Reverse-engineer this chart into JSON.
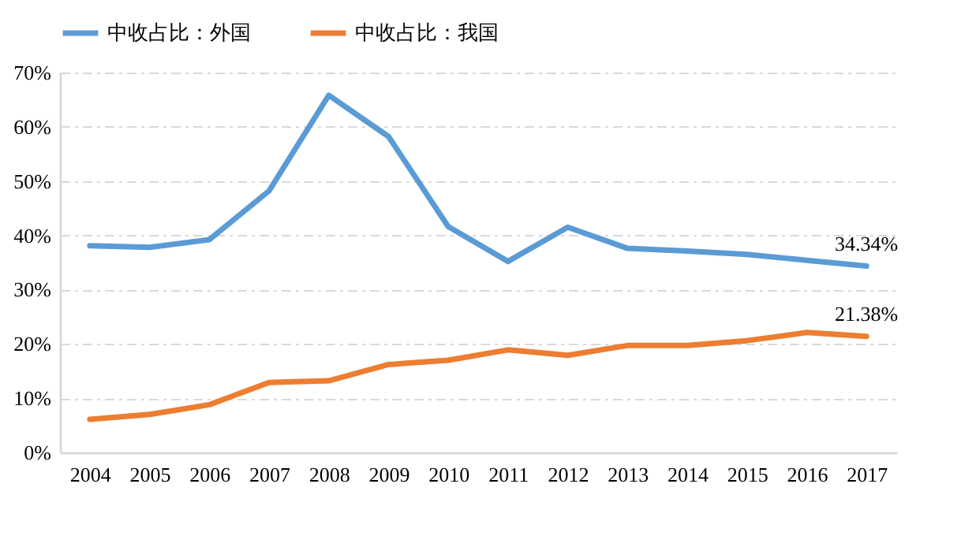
{
  "chart_data": {
    "type": "line",
    "categories": [
      "2004",
      "2005",
      "2006",
      "2007",
      "2008",
      "2009",
      "2010",
      "2011",
      "2012",
      "2013",
      "2014",
      "2015",
      "2016",
      "2017"
    ],
    "series": [
      {
        "name": "中收占比：外国",
        "color": "#5b9bd5",
        "values": [
          38.1,
          37.8,
          39.2,
          48.2,
          65.8,
          58.2,
          41.6,
          35.2,
          41.5,
          37.6,
          37.1,
          36.5,
          35.4,
          34.34
        ],
        "value_labels": [
          null,
          null,
          null,
          null,
          null,
          null,
          null,
          null,
          null,
          null,
          null,
          null,
          null,
          "34.34%"
        ]
      },
      {
        "name": "中收占比：我国",
        "color": "#ed7d31",
        "values": [
          6.1,
          7.0,
          8.8,
          12.9,
          13.2,
          16.2,
          17.0,
          18.9,
          17.9,
          19.7,
          19.7,
          20.6,
          22.1,
          21.38
        ],
        "value_labels": [
          null,
          null,
          null,
          null,
          null,
          null,
          null,
          null,
          null,
          null,
          null,
          null,
          null,
          "21.38%"
        ]
      }
    ],
    "ylim": [
      0,
      70
    ],
    "yticks": [
      {
        "value": 0,
        "label": "0%"
      },
      {
        "value": 10,
        "label": "10%"
      },
      {
        "value": 20,
        "label": "20%"
      },
      {
        "value": 30,
        "label": "30%"
      },
      {
        "value": 40,
        "label": "40%"
      },
      {
        "value": 50,
        "label": "50%"
      },
      {
        "value": 60,
        "label": "60%"
      },
      {
        "value": 70,
        "label": "70%"
      }
    ],
    "grid": "y",
    "legend": "top",
    "line_style": "solid",
    "marker": "none"
  }
}
